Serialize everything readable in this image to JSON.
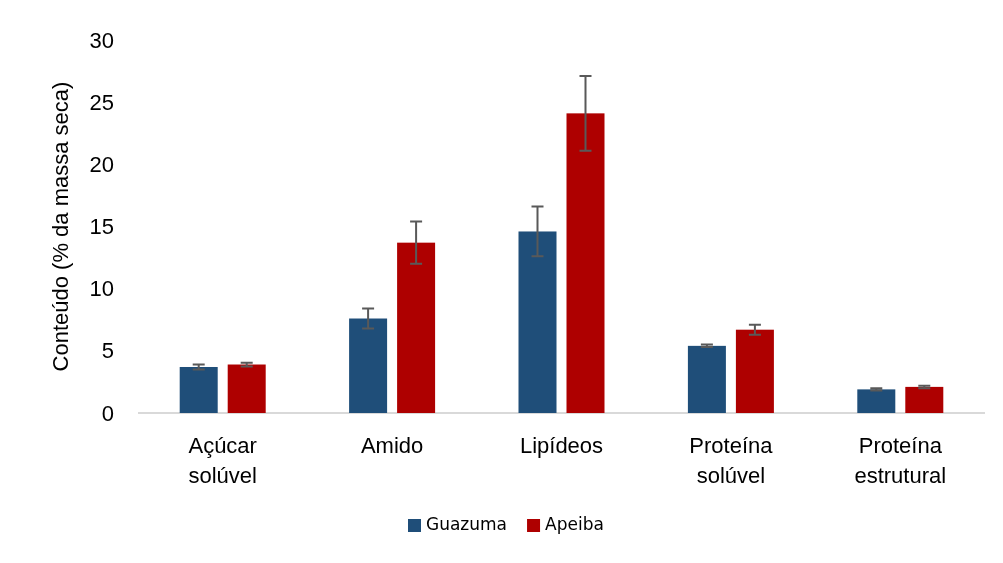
{
  "chart_data": {
    "type": "bar",
    "ylabel": "Conteúdo (% da massa seca)",
    "categories": [
      "Açúcar solúvel",
      "Amido",
      "Lipídeos",
      "Proteína solúvel",
      "Proteína estrutural"
    ],
    "series": [
      {
        "name": "Guazuma",
        "color": "#1f4e79",
        "values": [
          3.7,
          7.6,
          14.6,
          5.4,
          1.9
        ],
        "errors": [
          0.2,
          0.8,
          2.0,
          0.1,
          0.1
        ]
      },
      {
        "name": "Apeiba",
        "color": "#ae0000",
        "values": [
          3.9,
          13.7,
          24.1,
          6.7,
          2.1
        ],
        "errors": [
          0.15,
          1.7,
          3.0,
          0.4,
          0.1
        ]
      }
    ],
    "ylim": [
      0,
      30
    ],
    "yticks": [
      0,
      5,
      10,
      15,
      20,
      25,
      30
    ],
    "grid": false,
    "legend": "bottom"
  }
}
